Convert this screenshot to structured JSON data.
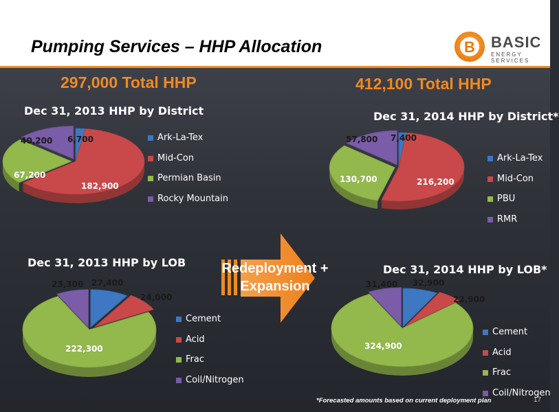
{
  "slide": {
    "title": "Pumping Services – HHP Allocation",
    "footnote": "*Forecasted amounts based on current deployment plan",
    "page_number": "17"
  },
  "logo": {
    "name": "BASIC",
    "tagline": "ENERGY SERVICES",
    "mark_letter": "B",
    "icon": "basic-energy-logo-icon"
  },
  "totals": {
    "left": "297,000 Total HHP",
    "right": "412,100 Total HHP"
  },
  "arrow": {
    "line1": "Redeployment +",
    "line2": "Expansion",
    "color": "#f08a22"
  },
  "colors": {
    "blue": "#3e77c2",
    "red": "#c9494a",
    "green": "#93b84c",
    "purple": "#7a5ca8",
    "accent": "#f08a22"
  },
  "chart_data": [
    {
      "type": "pie",
      "title": "Dec 31, 2013 HHP by District",
      "categories": [
        "Ark-La-Tex",
        "Mid-Con",
        "Permian Basin",
        "Rocky Mountain"
      ],
      "values": [
        6700,
        182900,
        67200,
        40200
      ],
      "labels": [
        "6,700",
        "182,900",
        "67,200",
        "40,200"
      ],
      "legend": "right"
    },
    {
      "type": "pie",
      "title": "Dec 31, 2014 HHP by District*",
      "categories": [
        "Ark-La-Tex",
        "Mid-Con",
        "PBU",
        "RMR"
      ],
      "values": [
        7400,
        216200,
        130700,
        57800
      ],
      "labels": [
        "7,400",
        "216,200",
        "130,700",
        "57,800"
      ],
      "legend": "right"
    },
    {
      "type": "pie",
      "title": "Dec 31, 2013 HHP by LOB",
      "categories": [
        "Cement",
        "Acid",
        "Frac",
        "Coil/Nitrogen"
      ],
      "values": [
        27400,
        24000,
        222300,
        23300
      ],
      "labels": [
        "27,400",
        "24,000",
        "222,300",
        "23,300"
      ],
      "legend": "right"
    },
    {
      "type": "pie",
      "title": "Dec 31, 2014 HHP by LOB*",
      "categories": [
        "Cement",
        "Acid",
        "Frac",
        "Coil/Nitrogen"
      ],
      "values": [
        32900,
        22900,
        324900,
        31400
      ],
      "labels": [
        "32,900",
        "22,900",
        "324,900",
        "31,400"
      ],
      "legend": "right"
    }
  ]
}
